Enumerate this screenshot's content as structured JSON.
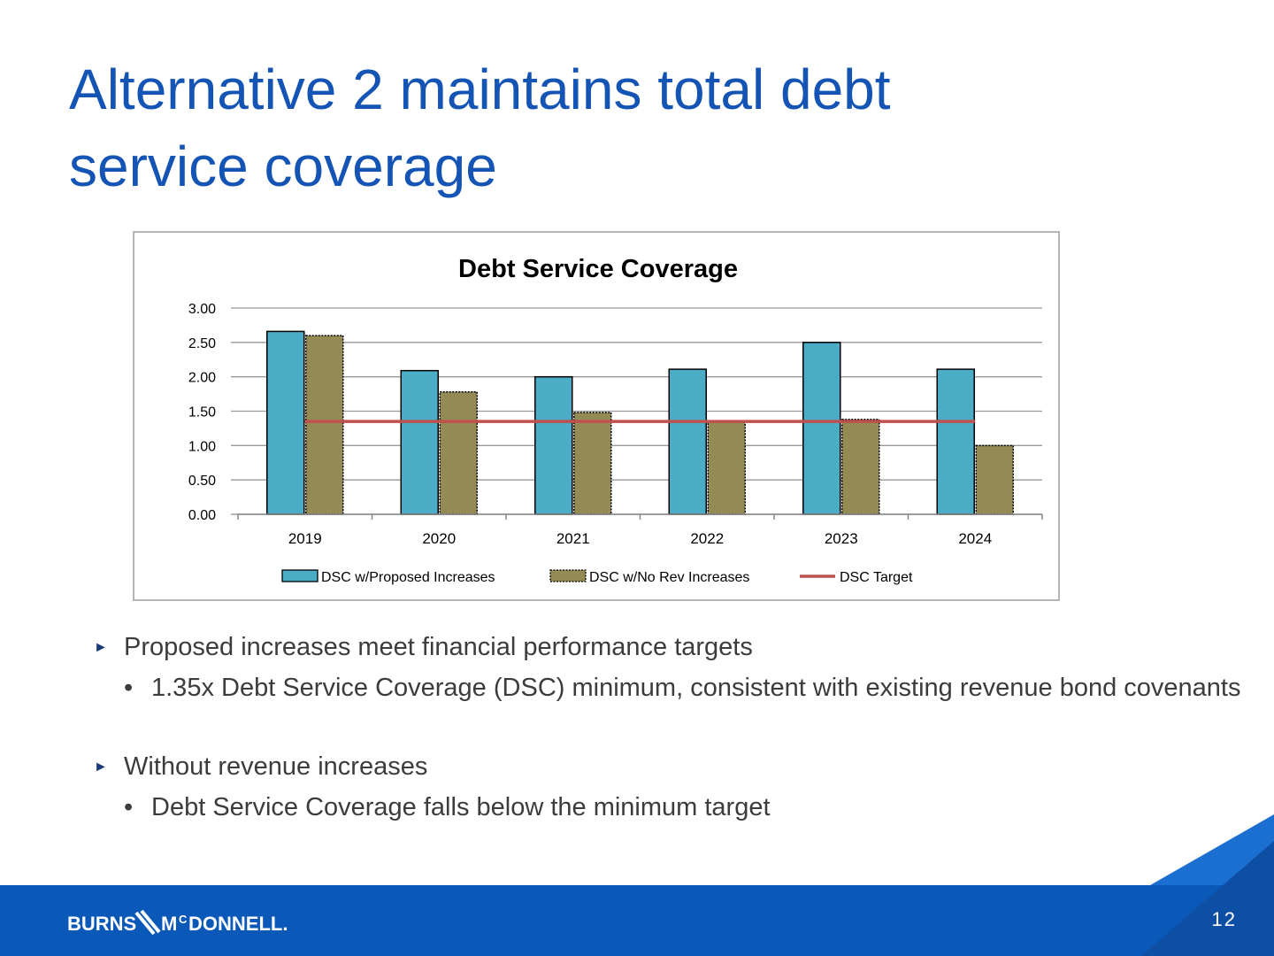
{
  "slide": {
    "title_line1": "Alternative 2 maintains total debt",
    "title_line2": "service coverage",
    "page_number": "12"
  },
  "colors": {
    "title": "#1454b4",
    "proposed": "#4bacc6",
    "no_rev": "#948a54",
    "target": "#c0504d",
    "footer": "#0a58b8"
  },
  "chart_data": {
    "type": "bar",
    "title": "Debt Service Coverage",
    "categories": [
      "2019",
      "2020",
      "2021",
      "2022",
      "2023",
      "2024"
    ],
    "series": [
      {
        "name": "DSC w/Proposed Increases",
        "kind": "bar",
        "values": [
          2.66,
          2.09,
          2.0,
          2.11,
          2.5,
          2.11
        ]
      },
      {
        "name": "DSC w/No Rev Increases",
        "kind": "bar",
        "values": [
          2.6,
          1.78,
          1.48,
          1.36,
          1.38,
          1.0
        ]
      },
      {
        "name": "DSC Target",
        "kind": "line",
        "values": [
          1.35,
          1.35,
          1.35,
          1.35,
          1.35,
          1.35
        ]
      }
    ],
    "yticks": [
      "0.00",
      "0.50",
      "1.00",
      "1.50",
      "2.00",
      "2.50",
      "3.00"
    ],
    "ylim": [
      0,
      3
    ],
    "xlabel": "",
    "ylabel": "",
    "grid": true,
    "legend_position": "bottom"
  },
  "bullets": [
    {
      "text": "Proposed increases meet financial performance targets",
      "sub": [
        "1.35x Debt Service Coverage (DSC) minimum, consistent with existing revenue bond covenants"
      ]
    },
    {
      "text": "Without revenue increases",
      "sub": [
        "Debt Service Coverage falls below the minimum target"
      ]
    }
  ],
  "logo": {
    "left": "BURNS",
    "right_a": "M",
    "right_b": "C",
    "right_c": "DONNELL."
  }
}
